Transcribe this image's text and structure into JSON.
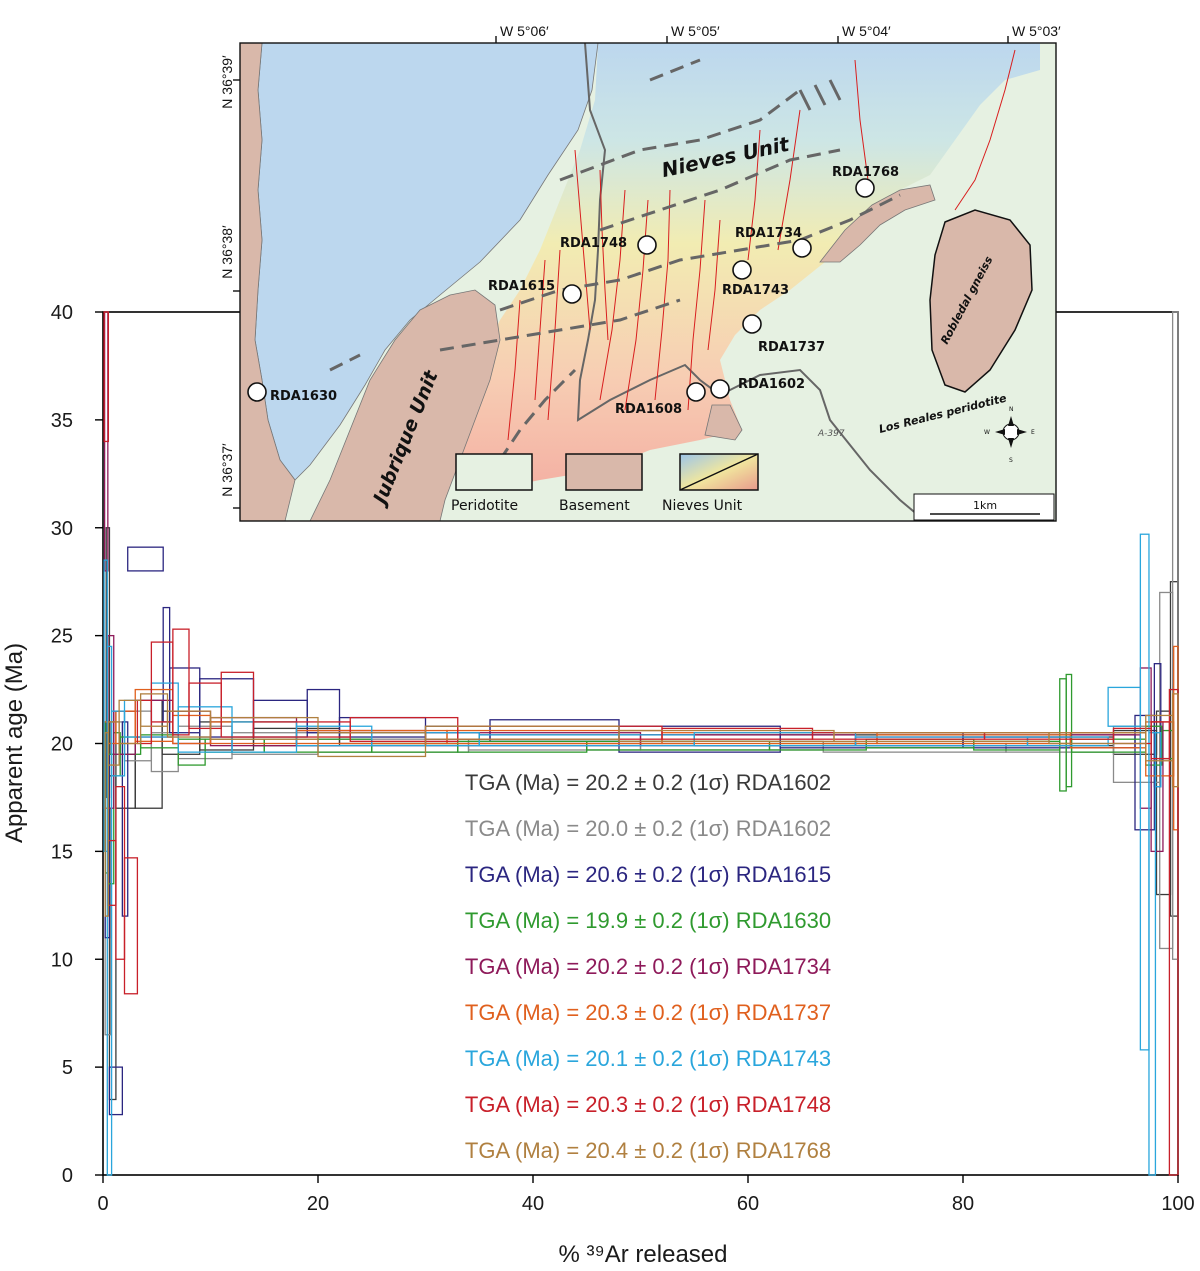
{
  "chart_data": {
    "type": "line",
    "xlabel": "% ³⁹Ar released",
    "ylabel": "Apparent age (Ma)",
    "xlim": [
      0,
      100
    ],
    "ylim": [
      0,
      40
    ],
    "xticks": [
      0,
      20,
      40,
      60,
      80,
      100
    ],
    "yticks": [
      0,
      5,
      10,
      15,
      20,
      25,
      30,
      35,
      40
    ],
    "grid": false,
    "legend_placement": "center",
    "series": [
      {
        "name": "RDA1602",
        "tga_label": "TGA (Ma) = 20.2 ± 0.2 (1σ) RDA1602",
        "color": "#3a3a3a",
        "steps": [
          [
            0.3,
            0.6,
            17.5,
            30.0
          ],
          [
            0.6,
            1.2,
            3.5,
            18.5
          ],
          [
            1.2,
            3.0,
            17.0,
            21.5
          ],
          [
            3.0,
            5.5,
            17.0,
            22.0
          ],
          [
            5.5,
            9.0,
            19.5,
            21.5
          ],
          [
            9.0,
            14.0,
            19.7,
            21.0
          ],
          [
            14.0,
            22.0,
            19.9,
            20.7
          ],
          [
            22.0,
            35.0,
            20.0,
            20.5
          ],
          [
            35.0,
            55.0,
            20.0,
            20.4
          ],
          [
            55.0,
            80.0,
            19.9,
            20.4
          ],
          [
            80.0,
            94.0,
            19.9,
            20.3
          ],
          [
            94.0,
            98.0,
            19.5,
            20.6
          ],
          [
            98.0,
            99.3,
            13.0,
            21.5
          ],
          [
            99.3,
            100.0,
            12.0,
            27.5
          ]
        ]
      },
      {
        "name": "RDA1602",
        "tga_label": "TGA (Ma) = 20.0 ± 0.2 (1σ) RDA1602",
        "color": "#8a8a8a",
        "steps": [
          [
            0.2,
            0.7,
            6.5,
            17.0
          ],
          [
            0.7,
            2.0,
            19.5,
            21.0
          ],
          [
            2.0,
            4.5,
            19.2,
            21.5
          ],
          [
            4.5,
            7.0,
            18.7,
            20.5
          ],
          [
            7.0,
            12.0,
            19.3,
            20.8
          ],
          [
            12.0,
            20.0,
            19.5,
            20.5
          ],
          [
            20.0,
            34.0,
            19.6,
            20.2
          ],
          [
            34.0,
            50.0,
            19.7,
            20.1
          ],
          [
            50.0,
            67.0,
            19.7,
            20.1
          ],
          [
            67.0,
            84.0,
            19.6,
            20.0
          ],
          [
            84.0,
            94.0,
            19.6,
            20.0
          ],
          [
            94.0,
            98.3,
            18.2,
            20.8
          ],
          [
            98.3,
            99.5,
            10.5,
            27.0
          ],
          [
            99.5,
            100.0,
            10.0,
            40.0
          ]
        ]
      },
      {
        "name": "RDA1615",
        "tga_label": "TGA (Ma) = 20.6 ± 0.2 (1σ) RDA1615",
        "color": "#2b2680",
        "steps": [
          [
            0.2,
            0.6,
            11.0,
            19.5
          ],
          [
            0.6,
            1.8,
            2.8,
            5.0
          ],
          [
            1.8,
            2.3,
            12.0,
            21.0
          ],
          [
            2.3,
            5.6,
            28.0,
            29.1
          ],
          [
            5.6,
            6.2,
            21.0,
            26.3
          ],
          [
            6.2,
            9.0,
            20.5,
            23.5
          ],
          [
            9.0,
            14.0,
            20.3,
            23.0
          ],
          [
            14.0,
            19.0,
            20.3,
            22.0
          ],
          [
            19.0,
            22.0,
            20.5,
            22.5
          ],
          [
            22.0,
            30.0,
            20.3,
            21.2
          ],
          [
            30.0,
            36.0,
            20.2,
            20.8
          ],
          [
            36.0,
            48.0,
            20.1,
            21.1
          ],
          [
            48.0,
            63.0,
            19.6,
            20.8
          ],
          [
            63.0,
            80.0,
            19.8,
            20.5
          ],
          [
            80.0,
            96.0,
            19.8,
            20.4
          ],
          [
            96.0,
            97.8,
            16.0,
            21.3
          ],
          [
            97.8,
            98.4,
            18.0,
            23.7
          ]
        ]
      },
      {
        "name": "RDA1630",
        "tga_label": "TGA (Ma) = 19.9 ± 0.2 (1σ) RDA1630",
        "color": "#2f9a2f",
        "steps": [
          [
            0.2,
            0.5,
            14.0,
            21.0
          ],
          [
            0.5,
            1.0,
            13.5,
            19.5
          ],
          [
            1.0,
            1.6,
            18.5,
            20.5
          ],
          [
            1.6,
            3.5,
            19.5,
            20.3
          ],
          [
            3.5,
            7.0,
            19.8,
            20.4
          ],
          [
            7.0,
            9.5,
            19.0,
            20.2
          ],
          [
            9.5,
            15.0,
            19.6,
            20.2
          ],
          [
            15.0,
            25.0,
            19.6,
            20.2
          ],
          [
            25.0,
            33.0,
            19.6,
            20.0
          ],
          [
            33.0,
            45.0,
            19.6,
            20.1
          ],
          [
            45.0,
            62.0,
            19.7,
            20.1
          ],
          [
            62.0,
            71.0,
            19.7,
            20.0
          ],
          [
            71.0,
            81.0,
            19.8,
            20.2
          ],
          [
            81.0,
            89.0,
            19.7,
            20.1
          ],
          [
            89.0,
            89.6,
            17.8,
            23.0
          ],
          [
            89.6,
            90.1,
            18.0,
            23.2
          ],
          [
            90.1,
            97.0,
            19.6,
            20.2
          ],
          [
            97.0,
            98.5,
            19.0,
            20.8
          ],
          [
            98.5,
            99.5,
            19.3,
            20.6
          ]
        ]
      },
      {
        "name": "RDA1734",
        "tga_label": "TGA (Ma) = 20.2 ± 0.2 (1σ) RDA1734",
        "color": "#8e1a5a",
        "steps": [
          [
            0.15,
            0.45,
            28.0,
            40.0
          ],
          [
            0.45,
            1.0,
            17.0,
            25.0
          ],
          [
            1.0,
            3.0,
            19.5,
            21.5
          ],
          [
            3.0,
            6.5,
            20.3,
            22.0
          ],
          [
            6.5,
            10.0,
            20.0,
            21.5
          ],
          [
            10.0,
            18.0,
            19.9,
            21.2
          ],
          [
            18.0,
            30.0,
            19.9,
            20.6
          ],
          [
            30.0,
            50.0,
            19.9,
            20.5
          ],
          [
            50.0,
            70.0,
            19.9,
            20.4
          ],
          [
            70.0,
            90.0,
            19.9,
            20.3
          ],
          [
            90.0,
            96.5,
            19.8,
            20.4
          ],
          [
            96.5,
            97.5,
            17.0,
            23.5
          ],
          [
            97.5,
            98.6,
            15.0,
            21.0
          ]
        ]
      },
      {
        "name": "RDA1737",
        "tga_label": "TGA (Ma) = 20.3 ± 0.2 (1σ) RDA1737",
        "color": "#e0601e",
        "steps": [
          [
            0.1,
            0.4,
            17.0,
            21.0
          ],
          [
            0.4,
            1.2,
            20.0,
            21.0
          ],
          [
            1.2,
            3.0,
            20.0,
            21.5
          ],
          [
            3.0,
            6.5,
            20.1,
            22.5
          ],
          [
            6.5,
            10.0,
            20.0,
            21.3
          ],
          [
            10.0,
            18.0,
            20.0,
            21.0
          ],
          [
            18.0,
            32.0,
            20.0,
            20.6
          ],
          [
            32.0,
            52.0,
            20.0,
            20.6
          ],
          [
            52.0,
            72.0,
            20.0,
            20.5
          ],
          [
            72.0,
            90.0,
            20.0,
            20.4
          ],
          [
            90.0,
            97.0,
            19.8,
            20.5
          ],
          [
            97.0,
            99.6,
            18.5,
            21.0
          ],
          [
            99.6,
            100.0,
            16.0,
            24.5
          ]
        ]
      },
      {
        "name": "RDA1743",
        "tga_label": "TGA (Ma) = 20.1 ± 0.2 (1σ) RDA1743",
        "color": "#2aa6dc",
        "steps": [
          [
            0.1,
            0.4,
            15.0,
            28.5
          ],
          [
            0.4,
            0.8,
            0.0,
            24.5
          ],
          [
            0.8,
            2.0,
            18.5,
            21.5
          ],
          [
            2.0,
            4.5,
            20.3,
            22.0
          ],
          [
            4.5,
            7.0,
            20.3,
            22.8
          ],
          [
            7.0,
            12.0,
            19.6,
            21.7
          ],
          [
            12.0,
            18.0,
            19.6,
            21.0
          ],
          [
            18.0,
            25.0,
            19.9,
            20.8
          ],
          [
            25.0,
            35.0,
            19.9,
            20.5
          ],
          [
            35.0,
            55.0,
            19.9,
            20.4
          ],
          [
            55.0,
            70.0,
            19.9,
            20.5
          ],
          [
            70.0,
            86.0,
            19.9,
            20.3
          ],
          [
            86.0,
            93.5,
            19.9,
            20.3
          ],
          [
            93.5,
            96.5,
            20.8,
            22.6
          ],
          [
            96.5,
            97.3,
            5.8,
            29.7
          ],
          [
            97.3,
            97.9,
            0.0,
            20.5
          ],
          [
            97.9,
            98.4,
            18.0,
            20.5
          ]
        ]
      },
      {
        "name": "RDA1748",
        "tga_label": "TGA (Ma) = 20.3 ± 0.2 (1σ) RDA1748",
        "color": "#c8202a",
        "steps": [
          [
            0.1,
            0.5,
            34.0,
            40.0
          ],
          [
            0.5,
            1.2,
            12.5,
            15.5
          ],
          [
            1.2,
            2.0,
            10.0,
            18.0
          ],
          [
            2.0,
            3.2,
            8.4,
            14.7
          ],
          [
            3.2,
            4.5,
            20.0,
            22.0
          ],
          [
            4.5,
            6.5,
            21.0,
            24.7
          ],
          [
            6.5,
            8.0,
            20.4,
            25.3
          ],
          [
            8.0,
            11.0,
            20.7,
            22.8
          ],
          [
            11.0,
            14.0,
            20.3,
            23.3
          ],
          [
            14.0,
            23.0,
            20.3,
            21.0
          ],
          [
            23.0,
            33.0,
            20.1,
            21.2
          ],
          [
            33.0,
            52.0,
            20.2,
            20.8
          ],
          [
            52.0,
            66.0,
            20.2,
            20.7
          ],
          [
            66.0,
            82.0,
            20.2,
            20.5
          ],
          [
            82.0,
            94.0,
            20.2,
            20.5
          ],
          [
            94.0,
            97.5,
            20.0,
            20.7
          ],
          [
            97.5,
            99.2,
            19.3,
            21.0
          ],
          [
            99.2,
            100.0,
            0.0,
            22.5
          ]
        ]
      },
      {
        "name": "RDA1768",
        "tga_label": "TGA (Ma) = 20.4 ± 0.2 (1σ) RDA1768",
        "color": "#b08040",
        "steps": [
          [
            0.2,
            0.5,
            12.0,
            20.5
          ],
          [
            0.5,
            1.5,
            19.0,
            21.0
          ],
          [
            1.5,
            3.5,
            20.0,
            22.0
          ],
          [
            3.5,
            6.0,
            20.8,
            22.3
          ],
          [
            6.0,
            10.0,
            20.3,
            21.5
          ],
          [
            10.0,
            20.0,
            20.2,
            21.2
          ],
          [
            20.0,
            30.0,
            19.4,
            20.5
          ],
          [
            30.0,
            48.0,
            20.2,
            20.8
          ],
          [
            48.0,
            68.0,
            20.1,
            20.6
          ],
          [
            68.0,
            88.0,
            20.1,
            20.5
          ],
          [
            88.0,
            97.0,
            20.0,
            20.5
          ],
          [
            97.0,
            99.5,
            19.2,
            21.3
          ],
          [
            99.5,
            100.0,
            18.0,
            22.3
          ]
        ]
      }
    ]
  },
  "map": {
    "lat_labels": [
      "N 36°39′",
      "N 36°38′",
      "N 36°37′"
    ],
    "lon_labels": [
      "W 5°06′",
      "W 5°05′",
      "W 5°04′",
      "W 5°03′"
    ],
    "units": {
      "nieves": "Nieves Unit",
      "jubrique": "Jubrique Unit",
      "robledal": "Robledal gneiss",
      "losreales": "Los Reales peridotite",
      "road": "A-397"
    },
    "samples": [
      "RDA1630",
      "RDA1615",
      "RDA1748",
      "RDA1734",
      "RDA1743",
      "RDA1737",
      "RDA1768",
      "RDA1602",
      "RDA1608"
    ],
    "legend": {
      "peridotite": "Peridotite",
      "basement": "Basement",
      "nieves": "Nieves Unit"
    },
    "scale_label": "1km",
    "compass": {
      "n": "N",
      "s": "S",
      "e": "E",
      "w": "W"
    },
    "colors": {
      "peridotite": "#e6f1e2",
      "basement": "#d9b8aa",
      "nieves_blue": "#bcd7ee",
      "nieves_yellow": "#f3ecb0",
      "nieves_red": "#f4b3a5",
      "fault": "#d81e1e"
    }
  }
}
